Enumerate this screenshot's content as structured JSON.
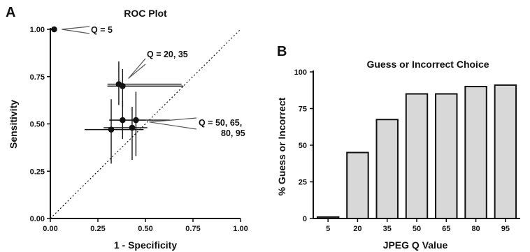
{
  "panels": {
    "a": {
      "letter": "A"
    },
    "b": {
      "letter": "B"
    }
  },
  "chart_data": [
    {
      "type": "scatter",
      "title": "ROC Plot",
      "xlabel": "1 - Specificity",
      "ylabel": "Sensitivity",
      "xlim": [
        0,
        1
      ],
      "ylim": [
        0,
        1
      ],
      "x_ticks": [
        "0.00",
        "0.25",
        "0.50",
        "0.75",
        "1.00"
      ],
      "y_ticks": [
        "0.00",
        "0.25",
        "0.50",
        "0.75",
        "1.00"
      ],
      "grid": false,
      "points": [
        {
          "x": 0.02,
          "y": 1.0,
          "xerr": [
            0.0,
            0.0
          ],
          "yerr": [
            0.0,
            0.0
          ]
        },
        {
          "x": 0.36,
          "y": 0.71,
          "xerr": [
            0.3,
            0.69
          ],
          "yerr": [
            0.6,
            0.83
          ]
        },
        {
          "x": 0.38,
          "y": 0.7,
          "xerr": [
            0.3,
            0.7
          ],
          "yerr": [
            0.59,
            0.79
          ]
        },
        {
          "x": 0.32,
          "y": 0.47,
          "xerr": [
            0.18,
            0.49
          ],
          "yerr": [
            0.29,
            0.63
          ]
        },
        {
          "x": 0.43,
          "y": 0.48,
          "xerr": [
            0.28,
            0.51
          ],
          "yerr": [
            0.31,
            0.59
          ]
        },
        {
          "x": 0.38,
          "y": 0.52,
          "xerr": [
            0.31,
            0.5
          ],
          "yerr": [
            0.42,
            0.62
          ]
        },
        {
          "x": 0.45,
          "y": 0.52,
          "xerr": [
            0.31,
            0.63
          ],
          "yerr": [
            0.33,
            0.67
          ]
        }
      ],
      "reference_line": {
        "from": [
          0,
          0
        ],
        "to": [
          1,
          1
        ],
        "style": "dotted"
      },
      "annotations": [
        {
          "lines": [
            "Q = 5"
          ],
          "target": [
            0.03,
            1.0
          ]
        },
        {
          "lines": [
            "Q = 20, 35"
          ],
          "target": [
            0.4,
            0.72
          ]
        },
        {
          "lines": [
            "Q = 50, 65,",
            "80, 95"
          ],
          "target": [
            0.5,
            0.5
          ]
        }
      ]
    },
    {
      "type": "bar",
      "title": "Guess or Incorrect Choice",
      "xlabel": "JPEG Q Value",
      "ylabel": "% Guess or Incorrect",
      "categories": [
        "5",
        "20",
        "35",
        "50",
        "65",
        "80",
        "95"
      ],
      "values": [
        1,
        45,
        67.5,
        85,
        85,
        90,
        91
      ],
      "ylim": [
        0,
        100
      ],
      "y_ticks": [
        "0",
        "25",
        "50",
        "75",
        "100"
      ],
      "bar_color": "#d8d8d8",
      "grid": false
    }
  ]
}
